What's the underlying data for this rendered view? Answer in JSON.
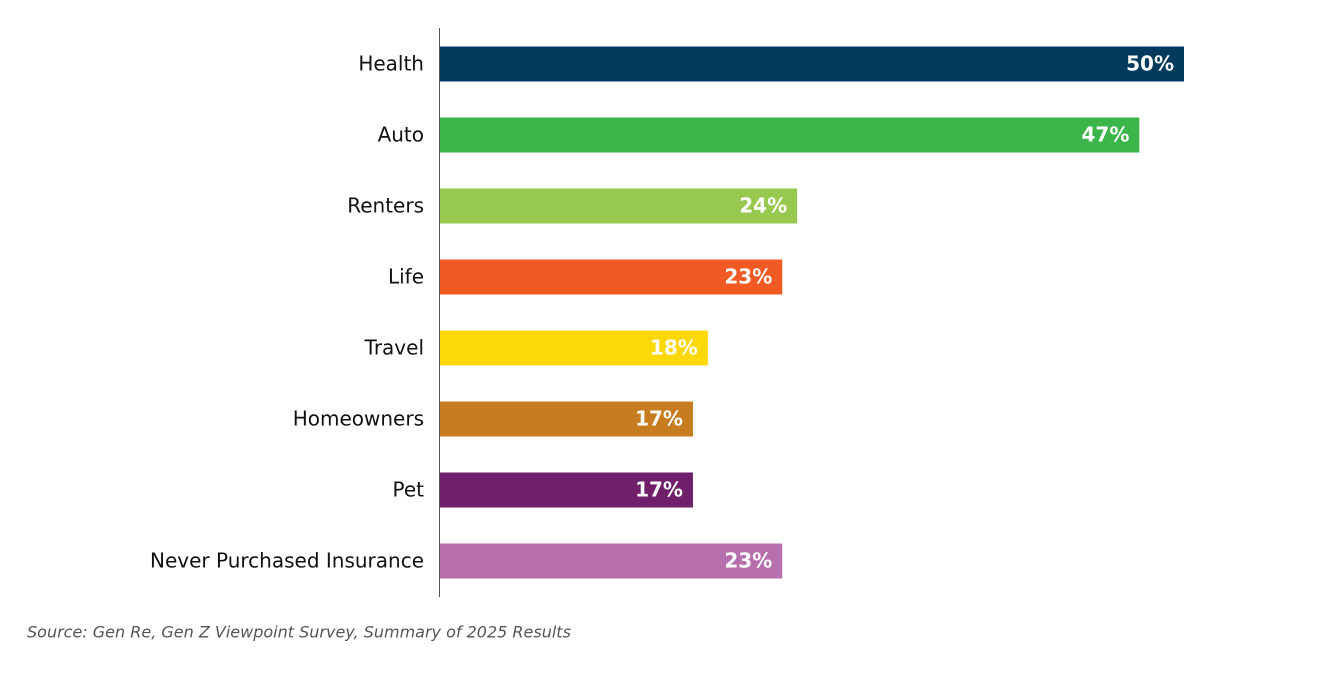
{
  "chart_data": {
    "type": "bar",
    "orientation": "horizontal",
    "categories": [
      "Health",
      "Auto",
      "Renters",
      "Life",
      "Travel",
      "Homeowners",
      "Pet",
      "Never Purchased Insurance"
    ],
    "values": [
      50,
      47,
      24,
      23,
      18,
      17,
      17,
      23
    ],
    "value_labels": [
      "50%",
      "47%",
      "24%",
      "23%",
      "18%",
      "17%",
      "17%",
      "23%"
    ],
    "colors": [
      "#003a5d",
      "#3bb44a",
      "#97c94f",
      "#f15a22",
      "#fdd808",
      "#c77c1f",
      "#701f6a",
      "#b76eac"
    ],
    "xlim": [
      0,
      50
    ],
    "source": "Source: Gen Re, Gen Z Viewpoint Survey, Summary of 2025 Results"
  }
}
